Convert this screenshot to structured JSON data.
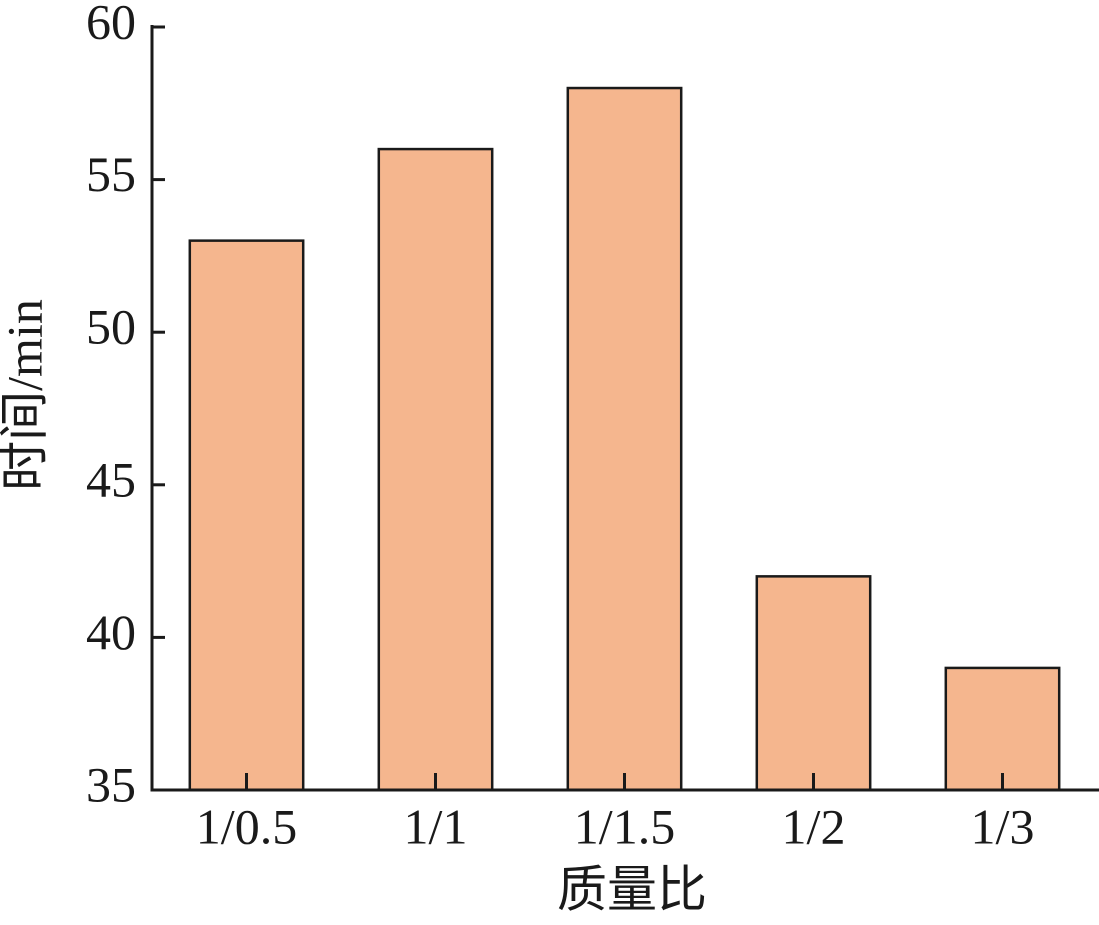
{
  "chart_data": {
    "type": "bar",
    "x_label": "质量比",
    "y_label": "时间/min",
    "categories": [
      "1/0.5",
      "1/1",
      "1/1.5",
      "1/2",
      "1/3"
    ],
    "values": [
      53,
      56,
      58,
      42,
      39
    ],
    "color": "#f5b68e",
    "ylim": [
      35,
      60
    ],
    "yticks": [
      35,
      40,
      45,
      50,
      55,
      60
    ]
  }
}
